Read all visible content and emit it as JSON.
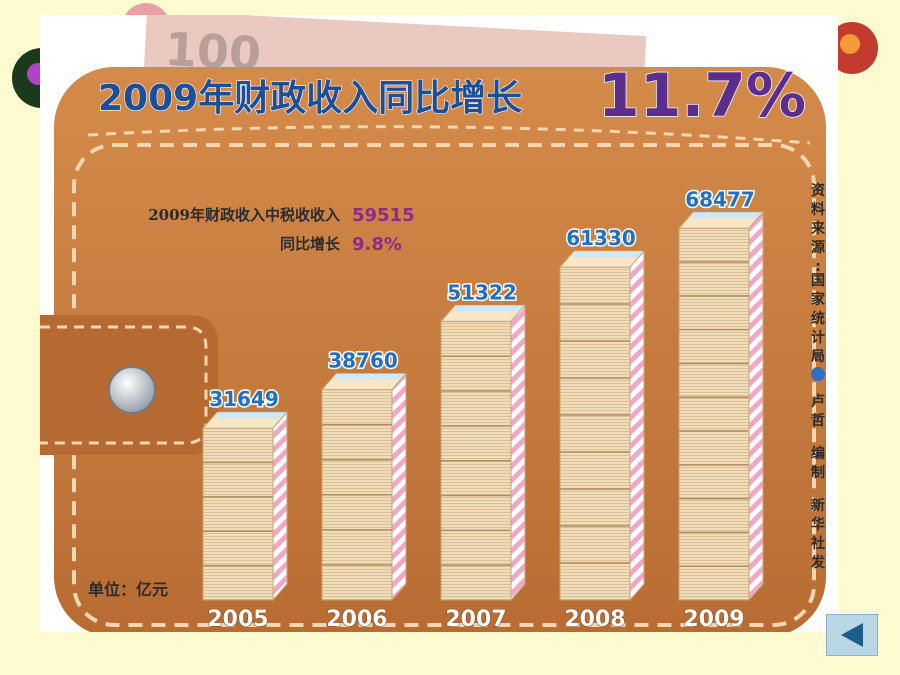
{
  "headline": {
    "title": "2009年财政收入同比增长",
    "growth": "11.7%"
  },
  "tax_note": {
    "label": "2009年财政收入中税收收入",
    "value": "59515",
    "growth_label": "同比增长",
    "growth_value": "9.8%"
  },
  "unit_label": "单位：亿元",
  "source_credit": [
    "资",
    "料",
    "来",
    "源",
    ":",
    "国",
    "家",
    "统",
    "计",
    "局",
    "卢",
    "哲",
    "编",
    "制",
    "新",
    "华",
    "社",
    "发"
  ],
  "banknote_text": "100",
  "colors": {
    "title_blue": "#1D4E9A",
    "title_purple": "#5B2D8C",
    "value_blue": "#1F6FC2",
    "note_purple": "#8E2A8E",
    "wallet_brown": "#C27A3E",
    "money_beige": "#F0D9B5",
    "stripe_pink": "#F2A6C8",
    "background": "#FFFBD0"
  },
  "chart_data": {
    "type": "bar",
    "title": "2009年财政收入同比增长",
    "categories": [
      "2005",
      "2006",
      "2007",
      "2008",
      "2009"
    ],
    "values": [
      31649,
      38760,
      51322,
      61330,
      68477
    ],
    "data_labels": [
      "31649",
      "38760",
      "51322",
      "61330",
      "68477"
    ],
    "ylabel": "单位：亿元",
    "xlabel": "",
    "ylim": [
      0,
      70000
    ],
    "grid": false,
    "legend": "none",
    "stack_units": [
      5,
      6,
      8,
      9,
      11
    ]
  },
  "nav": {
    "icon": "left-triangle-icon"
  }
}
